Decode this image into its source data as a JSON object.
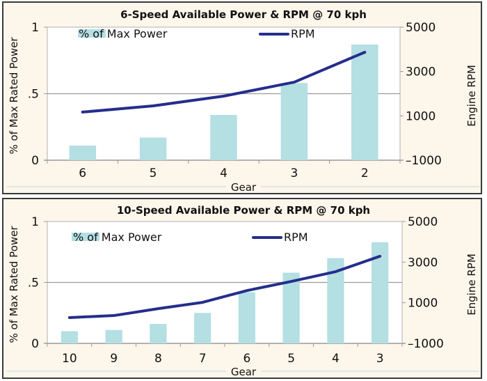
{
  "colors": {
    "panel_bg": "#fdf6ea",
    "plot_bg": "#ffffff",
    "bar": "#b4dfe3",
    "line": "#252e8c",
    "grid": "#9a9a9a"
  },
  "chart_data": [
    {
      "type": "bar+line",
      "title": "6-Speed Available Power & RPM @ 70 kph",
      "xlabel": "Gear",
      "ylabel": "% of Max Rated Power",
      "y2label": "Engine RPM",
      "categories": [
        "6",
        "5",
        "4",
        "3",
        "2"
      ],
      "series": [
        {
          "name": "% of Max Power",
          "type": "bar",
          "axis": "left",
          "values": [
            0.11,
            0.17,
            0.34,
            0.58,
            0.87
          ]
        },
        {
          "name": "RPM",
          "type": "line",
          "axis": "right",
          "values": [
            1170,
            1450,
            1890,
            2520,
            3870
          ]
        }
      ],
      "ylim": [
        0,
        1
      ],
      "yticks": [
        "0",
        ".5",
        "1"
      ],
      "y2lim": [
        -1000,
        5000
      ],
      "y2ticks": [
        "–1000",
        "1000",
        "3000",
        "5000"
      ],
      "grid": "horizontal at .5",
      "legend": "top"
    },
    {
      "type": "bar+line",
      "title": "10-Speed Available Power & RPM @ 70 kph",
      "xlabel": "Gear",
      "ylabel": "% of Max Rated Power",
      "y2label": "Engine RPM",
      "categories": [
        "10",
        "9",
        "8",
        "7",
        "6",
        "5",
        "4",
        "3"
      ],
      "series": [
        {
          "name": "% of Max Power",
          "type": "bar",
          "axis": "left",
          "values": [
            0.1,
            0.11,
            0.16,
            0.25,
            0.42,
            0.58,
            0.7,
            0.83
          ]
        },
        {
          "name": "RPM",
          "type": "line",
          "axis": "right",
          "values": [
            270,
            370,
            710,
            1020,
            1600,
            2050,
            2530,
            3290
          ]
        }
      ],
      "ylim": [
        0,
        1
      ],
      "yticks": [
        "0",
        ".5",
        "1"
      ],
      "y2lim": [
        -1000,
        5000
      ],
      "y2ticks": [
        "–1000",
        "1000",
        "3000",
        "5000"
      ],
      "grid": "horizontal at .5",
      "legend": "top"
    }
  ]
}
